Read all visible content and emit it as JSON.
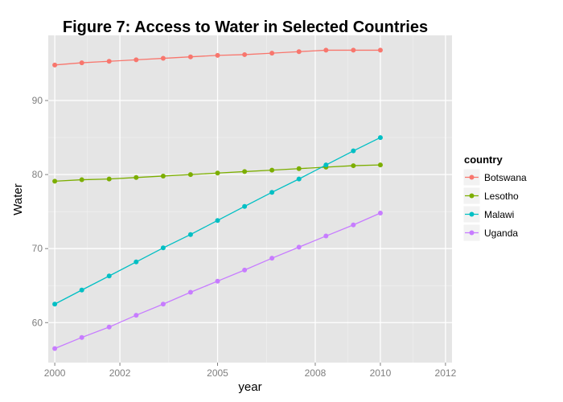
{
  "chart_data": {
    "type": "line",
    "title": "Figure 7: Access to Water in Selected Countries",
    "xlabel": "year",
    "ylabel": "Water",
    "xlim": [
      1999.8,
      2012.2
    ],
    "ylim": [
      54.6,
      98.8
    ],
    "x_ticks": [
      2000,
      2002,
      2005,
      2008,
      2010,
      2012
    ],
    "y_ticks": [
      60,
      70,
      80,
      90
    ],
    "grid": true,
    "legend_title": "country",
    "legend_position": "right",
    "x": [
      2000,
      2000.83,
      2001.67,
      2002.5,
      2003.33,
      2004.17,
      2005,
      2005.83,
      2006.67,
      2007.5,
      2008.33,
      2009.17,
      2010
    ],
    "series": [
      {
        "name": "Botswana",
        "color": "#F8766D",
        "values": [
          94.8,
          95.1,
          95.3,
          95.5,
          95.7,
          95.9,
          96.1,
          96.2,
          96.4,
          96.6,
          96.8,
          96.8,
          96.8
        ]
      },
      {
        "name": "Lesotho",
        "color": "#7CAE00",
        "values": [
          79.1,
          79.3,
          79.4,
          79.6,
          79.8,
          80.0,
          80.2,
          80.4,
          80.6,
          80.8,
          81.0,
          81.2,
          81.3
        ]
      },
      {
        "name": "Malawi",
        "color": "#00BFC4",
        "values": [
          62.5,
          64.4,
          66.3,
          68.2,
          70.1,
          71.9,
          73.8,
          75.7,
          77.6,
          79.4,
          81.3,
          83.2,
          85.0
        ]
      },
      {
        "name": "Uganda",
        "color": "#C77CFF",
        "values": [
          56.5,
          58.0,
          59.4,
          61.0,
          62.5,
          64.1,
          65.6,
          67.1,
          68.7,
          70.2,
          71.7,
          73.2,
          74.8
        ]
      }
    ]
  }
}
